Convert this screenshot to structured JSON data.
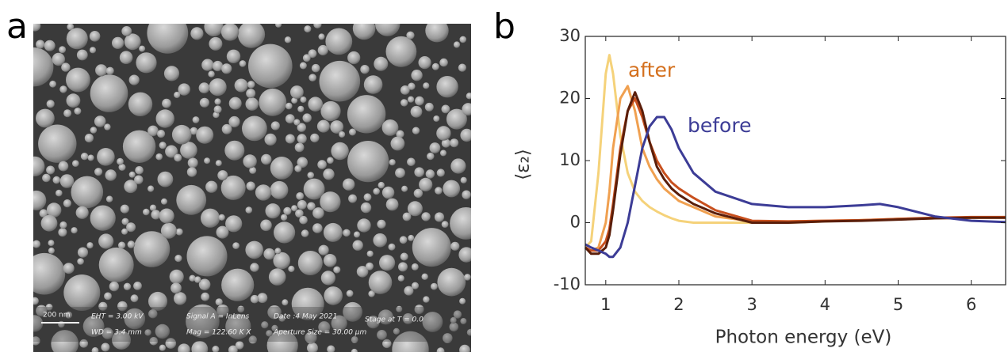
{
  "panel_a": {
    "label": "a",
    "scale_bar": "200 nm",
    "info": [
      "EHT = 3.00 kV",
      "Signal A = InLens",
      "Date :4 May 2021",
      "Stage at T = 0.0",
      "WD = 3.4 mm",
      "Mag = 122.60 K X",
      "Aperture Size = 30.00 µm"
    ]
  },
  "chart_data": {
    "type": "line",
    "panel_label": "b",
    "xlabel": "Photon energy (eV)",
    "ylabel": "⟨ε₂⟩",
    "xlim": [
      0.72,
      6.47
    ],
    "ylim": [
      -10,
      30
    ],
    "xticks": [
      1,
      2,
      3,
      4,
      5,
      6
    ],
    "yticks": [
      -10,
      0,
      10,
      20,
      30
    ],
    "annotations": [
      {
        "text": "after",
        "color": "#d4701e"
      },
      {
        "text": "before",
        "color": "#3c3c96"
      }
    ],
    "x": [
      0.72,
      0.8,
      0.9,
      1.0,
      1.05,
      1.1,
      1.2,
      1.3,
      1.4,
      1.5,
      1.6,
      1.7,
      1.8,
      1.9,
      2.0,
      2.2,
      2.5,
      3,
      3.5,
      4,
      4.5,
      4.75,
      5,
      5.5,
      6,
      6.47
    ],
    "series": [
      {
        "color": "#f5d27a",
        "values": [
          -4,
          -3,
          8,
          24,
          27,
          24,
          14,
          8,
          5,
          3.5,
          2.5,
          1.8,
          1.2,
          0.7,
          0.3,
          0,
          0,
          0,
          0,
          0.2,
          0.4,
          0.5,
          0.6,
          0.7,
          0.8,
          0.9
        ]
      },
      {
        "color": "#f0a050",
        "values": [
          -4,
          -4.5,
          -4,
          0,
          5,
          12,
          20,
          22,
          18,
          12,
          9,
          7,
          5.5,
          4.5,
          3.5,
          2.5,
          1,
          0.2,
          0.2,
          0.3,
          0.4,
          0.5,
          0.6,
          0.7,
          0.8,
          0.8
        ]
      },
      {
        "color": "#c8501e",
        "values": [
          -4,
          -4.5,
          -4.5,
          -3,
          -1,
          3,
          12,
          18,
          20,
          17,
          13,
          10,
          8,
          6.5,
          5.5,
          4,
          2,
          0.3,
          0.2,
          0.3,
          0.4,
          0.5,
          0.6,
          0.8,
          0.9,
          0.9
        ]
      },
      {
        "color": "#5a1e0a",
        "values": [
          -4,
          -5,
          -5,
          -4,
          -2,
          2,
          11,
          18,
          21,
          18,
          13,
          9,
          7,
          5.5,
          4.5,
          3,
          1.5,
          0,
          0,
          0.2,
          0.3,
          0.4,
          0.5,
          0.7,
          0.8,
          0.8
        ]
      },
      {
        "color": "#3c3c96",
        "values": [
          -3.5,
          -4,
          -4.5,
          -5,
          -5.5,
          -5.5,
          -4,
          0,
          6,
          12,
          15.5,
          17,
          17,
          15,
          12,
          8,
          5,
          3,
          2.5,
          2.5,
          2.8,
          3,
          2.5,
          1,
          0.3,
          0.1
        ]
      }
    ]
  }
}
